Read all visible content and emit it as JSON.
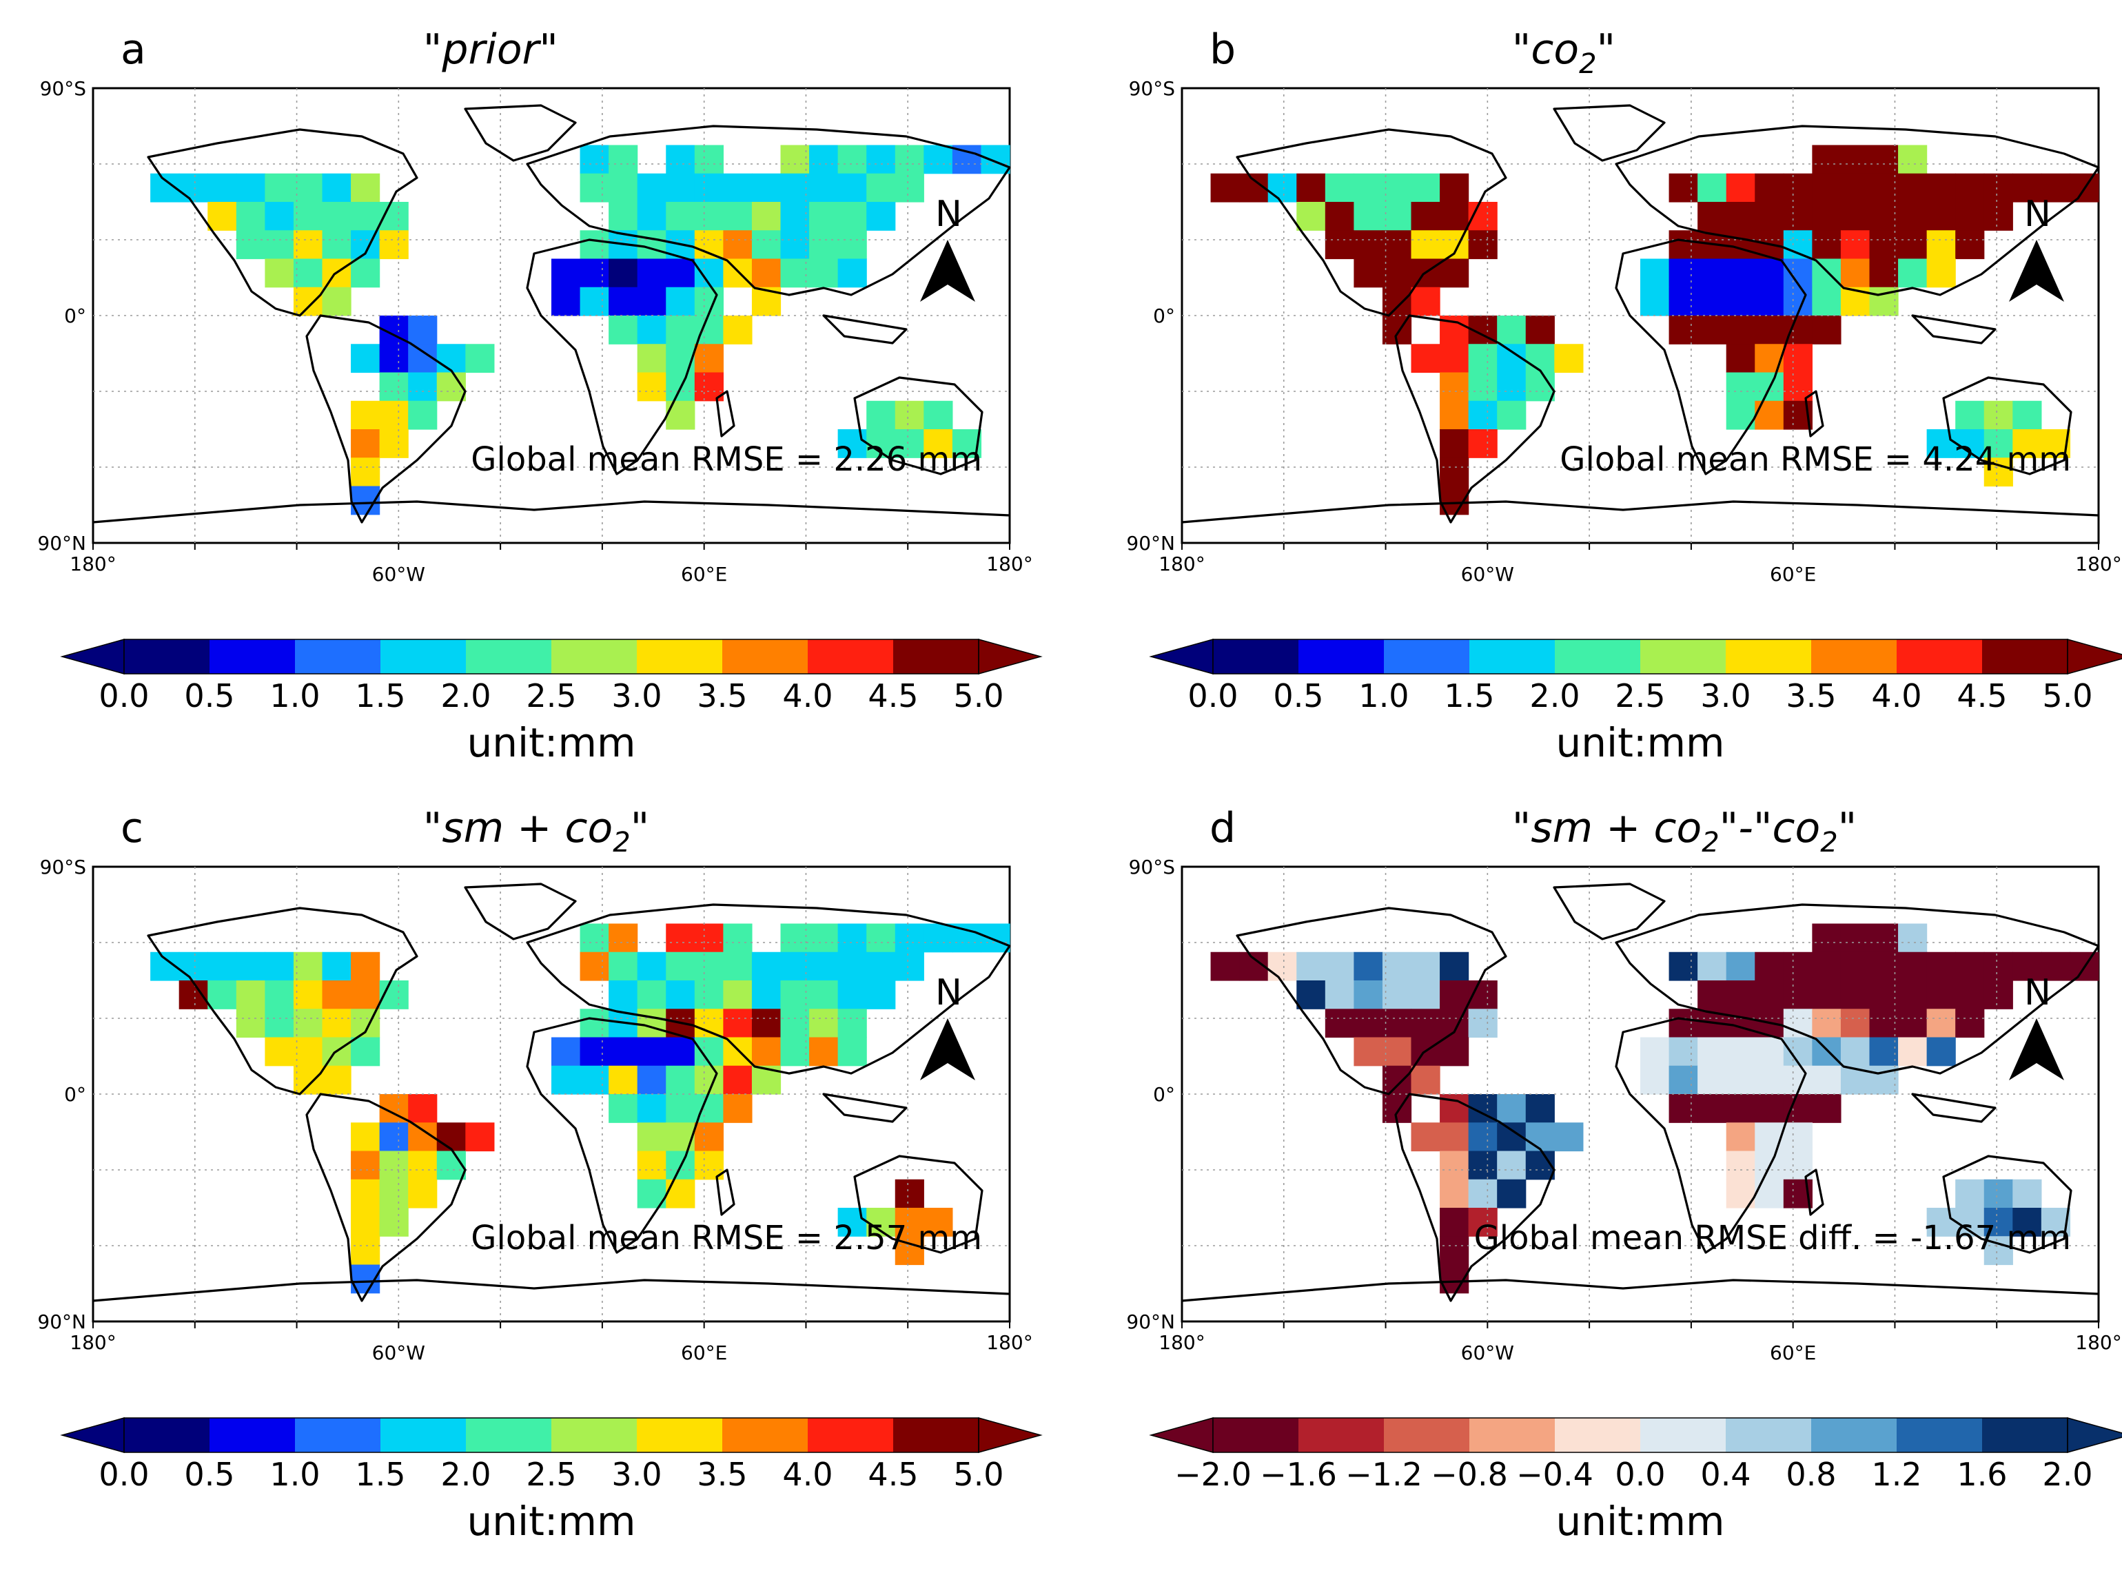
{
  "north_label": "N",
  "axis_labels": {
    "lat_top": "90°S",
    "lat_mid": "0°",
    "lat_bottom": "90°N",
    "lon_left": "180°",
    "lon_w": "60°W",
    "lon_e": "60°E",
    "lon_right": "180°"
  },
  "chart_data": [
    {
      "type": "heatmap",
      "letter": "a",
      "title": "\"prior\"",
      "annotation": "Global mean RMSE = 2.26 mm",
      "colorbar": {
        "kind": "rmse",
        "ticks": [
          "0.0",
          "0.5",
          "1.0",
          "1.5",
          "2.0",
          "2.5",
          "3.0",
          "3.5",
          "4.0",
          "4.5",
          "5.0"
        ],
        "unit": "unit:mm",
        "colors": [
          "#00007a",
          "#0000ee",
          "#1e6fff",
          "#00d3f5",
          "#40f0a8",
          "#a9f050",
          "#ffe000",
          "#ff8000",
          "#ff2010",
          "#7d0000"
        ]
      }
    },
    {
      "type": "heatmap",
      "letter": "b",
      "title": "\"co",
      "title_sub": "2",
      "title_end": "\"",
      "annotation": "Global mean RMSE = 4.24 mm",
      "colorbar": {
        "kind": "rmse",
        "ticks": [
          "0.0",
          "0.5",
          "1.0",
          "1.5",
          "2.0",
          "2.5",
          "3.0",
          "3.5",
          "4.0",
          "4.5",
          "5.0"
        ],
        "unit": "unit:mm",
        "colors": [
          "#00007a",
          "#0000ee",
          "#1e6fff",
          "#00d3f5",
          "#40f0a8",
          "#a9f050",
          "#ffe000",
          "#ff8000",
          "#ff2010",
          "#7d0000"
        ]
      }
    },
    {
      "type": "heatmap",
      "letter": "c",
      "title": "\"sm + co",
      "title_sub": "2",
      "title_end": "\"",
      "annotation": "Global mean RMSE = 2.57 mm",
      "colorbar": {
        "kind": "rmse",
        "ticks": [
          "0.0",
          "0.5",
          "1.0",
          "1.5",
          "2.0",
          "2.5",
          "3.0",
          "3.5",
          "4.0",
          "4.5",
          "5.0"
        ],
        "unit": "unit:mm",
        "colors": [
          "#00007a",
          "#0000ee",
          "#1e6fff",
          "#00d3f5",
          "#40f0a8",
          "#a9f050",
          "#ffe000",
          "#ff8000",
          "#ff2010",
          "#7d0000"
        ]
      }
    },
    {
      "type": "heatmap",
      "letter": "d",
      "title": "\"sm + co",
      "title_sub": "2",
      "title_end": "\"-\"co",
      "title_sub2": "2",
      "title_end2": "\"",
      "annotation": "Global mean RMSE diff. = -1.67 mm",
      "colorbar": {
        "kind": "diff",
        "ticks": [
          "−2.0",
          "−1.6",
          "−1.2",
          "−0.8",
          "−0.4",
          "0.0",
          "0.4",
          "0.8",
          "1.2",
          "1.6",
          "2.0"
        ],
        "unit": "unit:mm",
        "colors": [
          "#6b0020",
          "#b2202c",
          "#d6604d",
          "#f4a582",
          "#fbe1d4",
          "#dde9f1",
          "#a8cfe4",
          "#5aa2cf",
          "#2166ac",
          "#08306b"
        ]
      }
    }
  ]
}
